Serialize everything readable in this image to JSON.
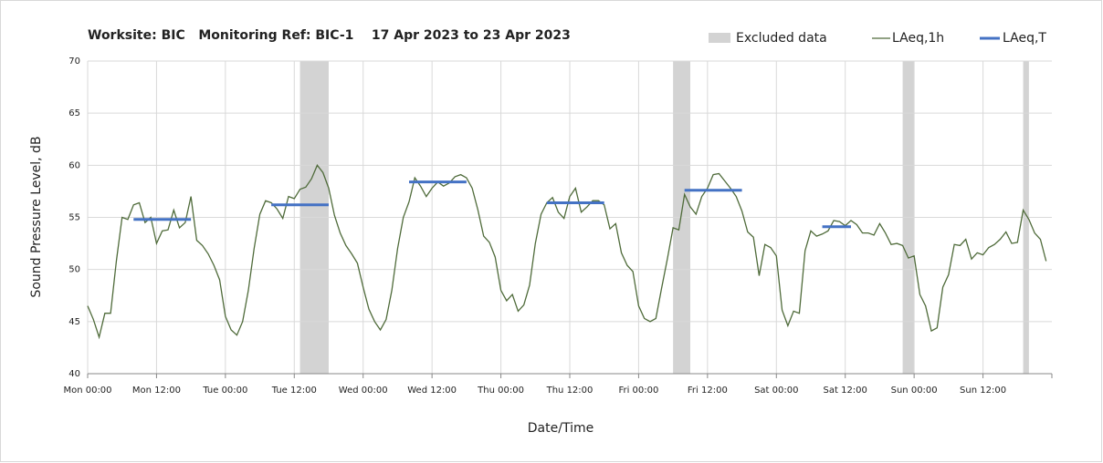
{
  "chart_data": {
    "type": "line",
    "title": "Worksite: BIC   Monitoring Ref: BIC-1    17 Apr 2023 to 23 Apr 2023",
    "xlabel": "Date/Time",
    "ylabel": "Sound Pressure Level, dB",
    "xlim": [
      0,
      168
    ],
    "ylim": [
      40,
      70
    ],
    "yticks": [
      40,
      45,
      50,
      55,
      60,
      65,
      70
    ],
    "xticks": [
      {
        "value": 0,
        "label": "Mon 00:00"
      },
      {
        "value": 12,
        "label": "Mon 12:00"
      },
      {
        "value": 24,
        "label": "Tue 00:00"
      },
      {
        "value": 36,
        "label": "Tue 12:00"
      },
      {
        "value": 48,
        "label": "Wed 00:00"
      },
      {
        "value": 60,
        "label": "Wed 12:00"
      },
      {
        "value": 72,
        "label": "Thu 00:00"
      },
      {
        "value": 84,
        "label": "Thu 12:00"
      },
      {
        "value": 96,
        "label": "Fri 00:00"
      },
      {
        "value": 108,
        "label": "Fri 12:00"
      },
      {
        "value": 120,
        "label": "Sat 00:00"
      },
      {
        "value": 132,
        "label": "Sat 12:00"
      },
      {
        "value": 144,
        "label": "Sun 00:00"
      },
      {
        "value": 156,
        "label": "Sun 12:00"
      }
    ],
    "grid": true,
    "excluded": {
      "name": "Excluded data",
      "color": "#d3d3d3",
      "ranges": [
        [
          37,
          42
        ],
        [
          102,
          105
        ],
        [
          142,
          144
        ],
        [
          163,
          164
        ]
      ]
    },
    "series": [
      {
        "name": "LAeq,1h",
        "color": "#4f6b3a",
        "x": [
          0,
          1,
          2,
          3,
          4,
          5,
          6,
          7,
          8,
          9,
          10,
          11,
          12,
          13,
          14,
          15,
          16,
          17,
          18,
          19,
          20,
          21,
          22,
          23,
          24,
          25,
          26,
          27,
          28,
          29,
          30,
          31,
          32,
          33,
          34,
          35,
          36,
          37,
          38,
          39,
          40,
          41,
          42,
          43,
          44,
          45,
          46,
          47,
          48,
          49,
          50,
          51,
          52,
          53,
          54,
          55,
          56,
          57,
          58,
          59,
          60,
          61,
          62,
          63,
          64,
          65,
          66,
          67,
          68,
          69,
          70,
          71,
          72,
          73,
          74,
          75,
          76,
          77,
          78,
          79,
          80,
          81,
          82,
          83,
          84,
          85,
          86,
          87,
          88,
          89,
          90,
          91,
          92,
          93,
          94,
          95,
          96,
          97,
          98,
          99,
          100,
          101,
          102,
          103,
          104,
          105,
          106,
          107,
          108,
          109,
          110,
          111,
          112,
          113,
          114,
          115,
          116,
          117,
          118,
          119,
          120,
          121,
          122,
          123,
          124,
          125,
          126,
          127,
          128,
          129,
          130,
          131,
          132,
          133,
          134,
          135,
          136,
          137,
          138,
          139,
          140,
          141,
          142,
          143,
          144,
          145,
          146,
          147,
          148,
          149,
          150,
          151,
          152,
          153,
          154,
          155,
          156,
          157,
          158,
          159,
          160,
          161,
          162,
          163,
          164,
          165,
          166,
          167
        ],
        "values": [
          46.5,
          45.2,
          43.5,
          45.8,
          45.8,
          50.8,
          55,
          54.8,
          56.2,
          56.4,
          54.5,
          55,
          52.5,
          53.7,
          53.8,
          55.7,
          54,
          54.5,
          57,
          52.8,
          52.3,
          51.5,
          50.4,
          49,
          45.5,
          44.2,
          43.7,
          45,
          48,
          52,
          55.3,
          56.6,
          56.4,
          55.8,
          54.9,
          57,
          56.8,
          57.7,
          57.9,
          58.7,
          60,
          59.3,
          57.8,
          55.2,
          53.5,
          52.3,
          51.5,
          50.6,
          48.3,
          46.2,
          45,
          44.2,
          45.2,
          48,
          52,
          55,
          56.5,
          58.8,
          58,
          57,
          57.8,
          58.4,
          58,
          58.3,
          58.9,
          59.1,
          58.8,
          57.8,
          55.7,
          53.2,
          52.6,
          51.2,
          48,
          47,
          47.6,
          46,
          46.6,
          48.5,
          52.5,
          55.3,
          56.4,
          56.9,
          55.5,
          54.9,
          57,
          57.8,
          55.5,
          56,
          56.6,
          56.6,
          56.2,
          53.9,
          54.4,
          51.6,
          50.4,
          49.8,
          46.5,
          45.3,
          45,
          45.3,
          48.2,
          51,
          54,
          53.8,
          57.2,
          56,
          55.3,
          57,
          57.8,
          59.1,
          59.2,
          58.5,
          57.8,
          57,
          55.6,
          53.6,
          53.1,
          49.4,
          52.4,
          52.1,
          51.3,
          46.1,
          44.6,
          46,
          45.8,
          51.8,
          53.7,
          53.2,
          53.4,
          53.7,
          54.7,
          54.6,
          54.2,
          54.7,
          54.3,
          53.5,
          53.5,
          53.3,
          54.4,
          53.5,
          52.4,
          52.5,
          52.3,
          51.1,
          51.3,
          47.6,
          46.5,
          44.1,
          44.4,
          48.3,
          49.5,
          52.4,
          52.3,
          52.9,
          51,
          51.6,
          51.4,
          52.1,
          52.4,
          52.9,
          53.6,
          52.5,
          52.6,
          55.7,
          54.8,
          53.5,
          52.9,
          50.8
        ]
      },
      {
        "name": "LAeq,T",
        "color": "#4472c4",
        "segments": [
          {
            "start": 8,
            "end": 18,
            "value": 54.8
          },
          {
            "start": 32,
            "end": 42,
            "value": 56.2
          },
          {
            "start": 56,
            "end": 66,
            "value": 58.4
          },
          {
            "start": 80,
            "end": 90,
            "value": 56.4
          },
          {
            "start": 104,
            "end": 114,
            "value": 57.6
          },
          {
            "start": 128,
            "end": 133,
            "value": 54.1
          }
        ]
      }
    ]
  }
}
